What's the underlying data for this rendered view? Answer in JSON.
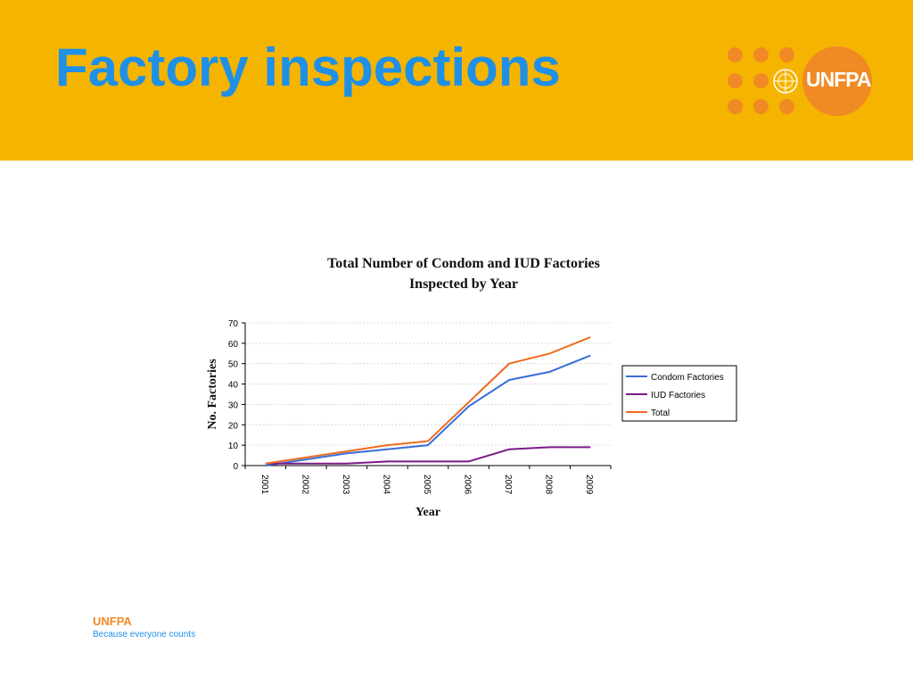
{
  "slide": {
    "title": "Factory inspections"
  },
  "logo": {
    "text": "UNFPA"
  },
  "footer": {
    "brand": "UNFPA",
    "tagline": "Because everyone counts"
  },
  "colors": {
    "header_bg": "#F5B400",
    "title": "#1E90E8",
    "logo_orange": "#F08A24",
    "condom": "#3A6FD8",
    "iud": "#7B1A87",
    "total": "#ED6C1F"
  },
  "chart_data": {
    "type": "line",
    "title_line1": "Total Number of Condom and IUD Factories",
    "title_line2": "Inspected by Year",
    "xlabel": "Year",
    "ylabel": "No. Factories",
    "categories": [
      "2001",
      "2002",
      "2003",
      "2004",
      "2005",
      "2006",
      "2007",
      "2008",
      "2009"
    ],
    "yticks": [
      "0",
      "10",
      "20",
      "30",
      "40",
      "50",
      "60",
      "70"
    ],
    "ylim": [
      0,
      70
    ],
    "grid": true,
    "legend_position": "right",
    "series": [
      {
        "name": "Condom Factories",
        "values": [
          0,
          3,
          6,
          8,
          10,
          29,
          42,
          46,
          54
        ],
        "color": "#3A6FD8"
      },
      {
        "name": "IUD Factories",
        "values": [
          1,
          1,
          1,
          2,
          2,
          2,
          8,
          9,
          9
        ],
        "color": "#7B1A87"
      },
      {
        "name": "Total",
        "values": [
          1,
          4,
          7,
          10,
          12,
          31,
          50,
          55,
          63
        ],
        "color": "#ED6C1F"
      }
    ]
  }
}
